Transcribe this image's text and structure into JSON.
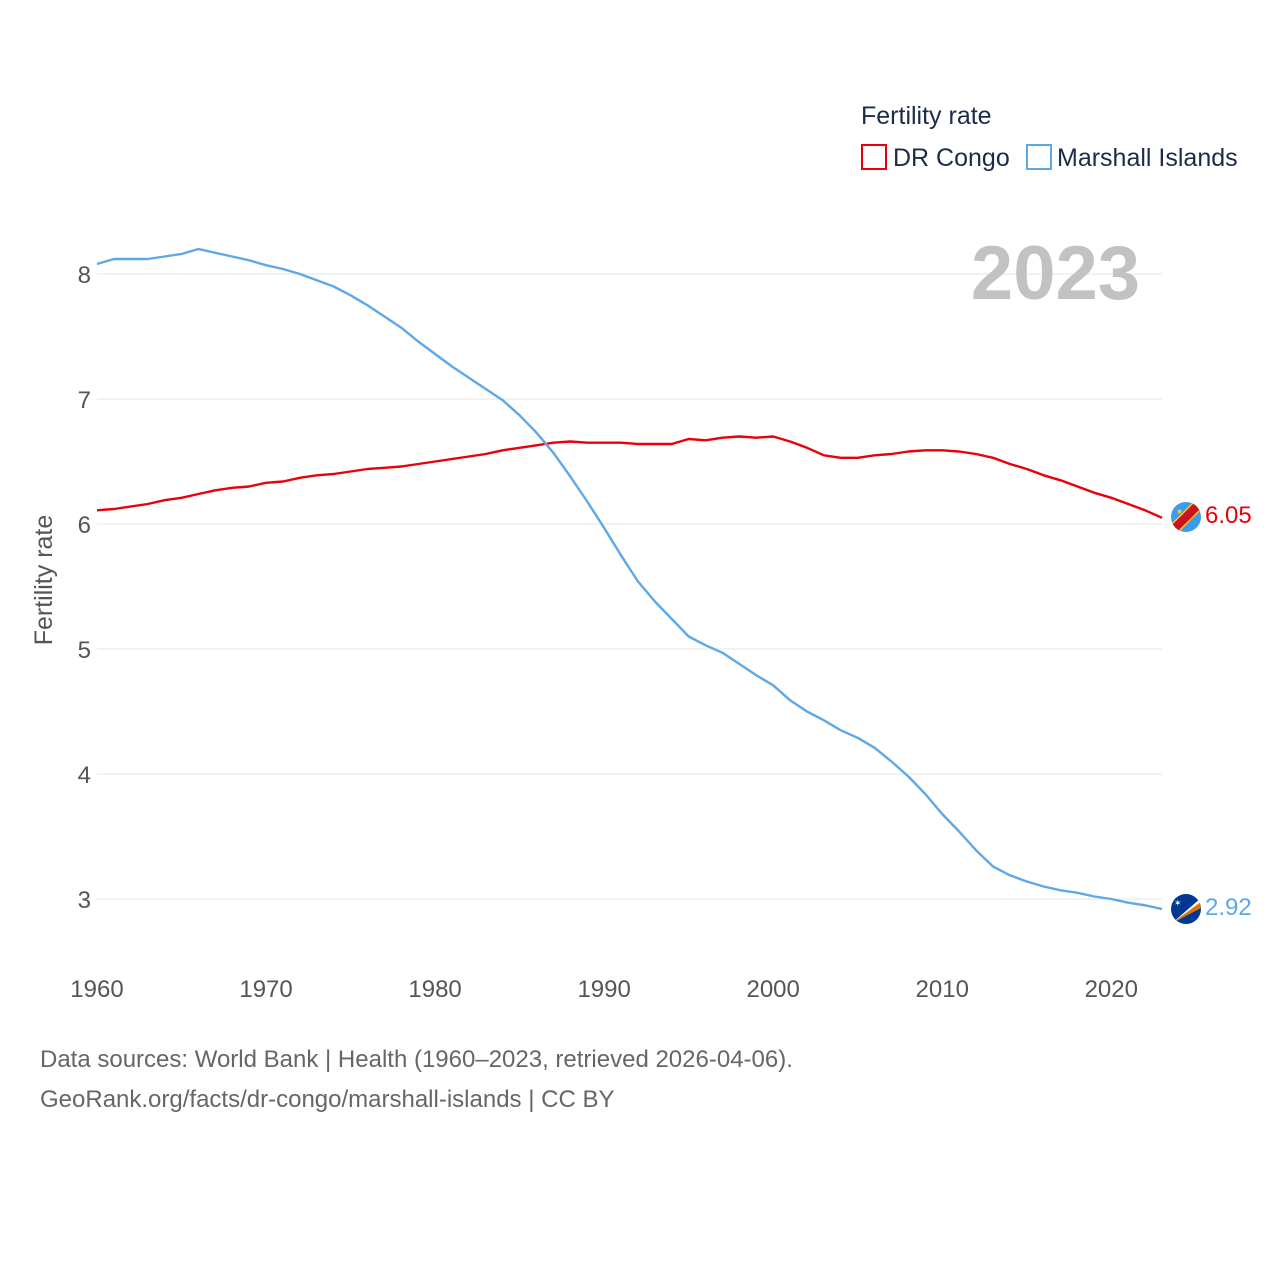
{
  "chart_data": {
    "type": "line",
    "legend_title": "Fertility rate",
    "ylabel": "Fertility rate",
    "xlabel": "",
    "year_label": "2023",
    "xlim": [
      1960,
      2023
    ],
    "ylim": [
      2.5,
      8.4
    ],
    "x_ticks": [
      "1960",
      "1970",
      "1980",
      "1990",
      "2000",
      "2010",
      "2020"
    ],
    "y_ticks": [
      "3",
      "4",
      "5",
      "6",
      "7",
      "8"
    ],
    "legend_position": "top-right",
    "x": [
      1960,
      1961,
      1962,
      1963,
      1964,
      1965,
      1966,
      1967,
      1968,
      1969,
      1970,
      1971,
      1972,
      1973,
      1974,
      1975,
      1976,
      1977,
      1978,
      1979,
      1980,
      1981,
      1982,
      1983,
      1984,
      1985,
      1986,
      1987,
      1988,
      1989,
      1990,
      1991,
      1992,
      1993,
      1994,
      1995,
      1996,
      1997,
      1998,
      1999,
      2000,
      2001,
      2002,
      2003,
      2004,
      2005,
      2006,
      2007,
      2008,
      2009,
      2010,
      2011,
      2012,
      2013,
      2014,
      2015,
      2016,
      2017,
      2018,
      2019,
      2020,
      2021,
      2022,
      2023
    ],
    "series": [
      {
        "name": "DR Congo",
        "color": "#e8000b",
        "end_label": "6.05",
        "values": [
          6.11,
          6.12,
          6.14,
          6.16,
          6.19,
          6.21,
          6.24,
          6.27,
          6.29,
          6.3,
          6.33,
          6.34,
          6.37,
          6.39,
          6.4,
          6.42,
          6.44,
          6.45,
          6.46,
          6.48,
          6.5,
          6.52,
          6.54,
          6.56,
          6.59,
          6.61,
          6.63,
          6.65,
          6.66,
          6.65,
          6.65,
          6.65,
          6.64,
          6.64,
          6.64,
          6.68,
          6.67,
          6.69,
          6.7,
          6.69,
          6.7,
          6.66,
          6.61,
          6.55,
          6.53,
          6.53,
          6.55,
          6.56,
          6.58,
          6.59,
          6.59,
          6.58,
          6.56,
          6.53,
          6.48,
          6.44,
          6.39,
          6.35,
          6.3,
          6.25,
          6.21,
          6.16,
          6.11,
          6.05
        ]
      },
      {
        "name": "Marshall Islands",
        "color": "#5ea8e8",
        "end_label": "2.92",
        "values": [
          8.08,
          8.12,
          8.12,
          8.12,
          8.14,
          8.16,
          8.2,
          8.17,
          8.14,
          8.11,
          8.07,
          8.04,
          8.0,
          7.95,
          7.9,
          7.83,
          7.75,
          7.66,
          7.57,
          7.46,
          7.36,
          7.26,
          7.17,
          7.08,
          6.99,
          6.87,
          6.73,
          6.57,
          6.38,
          6.18,
          5.97,
          5.75,
          5.54,
          5.38,
          5.24,
          5.1,
          5.03,
          4.97,
          4.88,
          4.79,
          4.71,
          4.59,
          4.5,
          4.43,
          4.35,
          4.29,
          4.21,
          4.1,
          3.98,
          3.84,
          3.68,
          3.54,
          3.39,
          3.26,
          3.19,
          3.14,
          3.1,
          3.07,
          3.05,
          3.02,
          3.0,
          2.97,
          2.95,
          2.92
        ]
      }
    ]
  },
  "source_line_1": "Data sources: World Bank | Health (1960–2023, retrieved 2026-04-06).",
  "source_line_2": "GeoRank.org/facts/dr-congo/marshall-islands | CC BY",
  "flags": {
    "dr_congo": "dr-congo-flag-icon",
    "marshall_islands": "marshall-islands-flag-icon"
  }
}
